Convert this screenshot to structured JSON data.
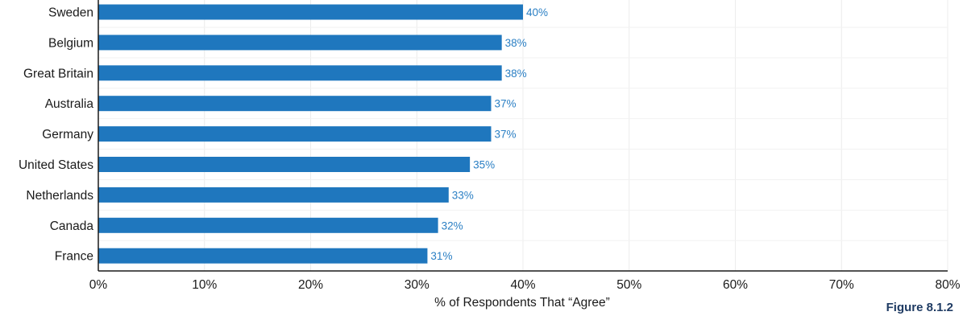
{
  "chart_data": {
    "type": "bar",
    "orientation": "horizontal",
    "categories": [
      "Sweden",
      "Belgium",
      "Great Britain",
      "Australia",
      "Germany",
      "United States",
      "Netherlands",
      "Canada",
      "France"
    ],
    "values": [
      40,
      38,
      38,
      37,
      37,
      35,
      33,
      32,
      31
    ],
    "value_labels": [
      "40%",
      "38%",
      "38%",
      "37%",
      "37%",
      "35%",
      "33%",
      "32%",
      "31%"
    ],
    "xlabel": "% of Respondents That “Agree”",
    "xlim": [
      0,
      80
    ],
    "xticks": [
      0,
      10,
      20,
      30,
      40,
      50,
      60,
      70,
      80
    ],
    "xtick_labels": [
      "0%",
      "10%",
      "20%",
      "30%",
      "40%",
      "50%",
      "60%",
      "70%",
      "80%"
    ],
    "grid": true,
    "bar_color": "#1f77be",
    "label_color": "#2a7fc4"
  },
  "caption": "Figure 8.1.2"
}
